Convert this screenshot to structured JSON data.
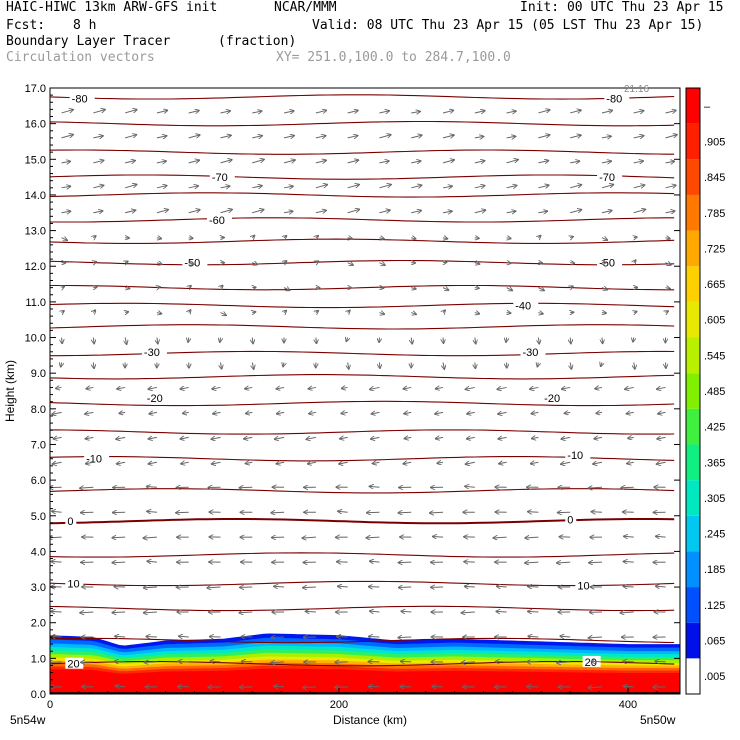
{
  "header": {
    "model": "HAIC-HIWC 13km ARW-GFS init",
    "org": "NCAR/MMM",
    "init": "Init: 00 UTC Thu 23 Apr 15",
    "fcst_label": "Fcst:",
    "fcst_value": "8 h",
    "valid": "Valid: 08 UTC Thu 23 Apr 15 (05 LST Thu 23 Apr 15)",
    "field_name": "Boundary Layer Tracer",
    "field_units": "(fraction)",
    "vector_label": "Circulation vectors",
    "xy_label": "XY= 251.0,100.0 to 284.7,100.0",
    "max_vector": "21.16"
  },
  "chart_data": {
    "type": "cross-section",
    "xlabel": "Distance (km)",
    "ylabel": "Height (km)",
    "xlim": [
      0,
      436
    ],
    "ylim": [
      0,
      17
    ],
    "x_ticks": [
      {
        "value": 0,
        "label": "0"
      },
      {
        "value": 200,
        "label": "200"
      },
      {
        "value": 400,
        "label": "400"
      }
    ],
    "x_end_labels": {
      "left": "5n54w",
      "right": "5n50w"
    },
    "y_ticks": [
      "0.0",
      "1.0",
      "2.0",
      "3.0",
      "4.0",
      "5.0",
      "6.0",
      "7.0",
      "8.0",
      "9.0",
      "10.0",
      "11.0",
      "12.0",
      "13.0",
      "14.0",
      "15.0",
      "16.0",
      "17.0"
    ],
    "colorbar": {
      "labels": [
        ".005",
        ".065",
        ".125",
        ".185",
        ".245",
        ".305",
        ".365",
        ".425",
        ".485",
        ".545",
        ".605",
        ".665",
        ".725",
        ".785",
        ".845",
        ".905",
        "–"
      ],
      "colors": [
        "#ffffff",
        "#0010e8",
        "#0050ff",
        "#0090ff",
        "#00c8f0",
        "#00e8c0",
        "#10f080",
        "#40f040",
        "#80f000",
        "#b8f000",
        "#e8e800",
        "#ffd000",
        "#ffa800",
        "#ff7800",
        "#ff4800",
        "#ff2000",
        "#ff0000"
      ]
    },
    "tracer_top_km": [
      {
        "x": 0,
        "top": 1.65
      },
      {
        "x": 30,
        "top": 1.6
      },
      {
        "x": 50,
        "top": 1.35
      },
      {
        "x": 80,
        "top": 1.5
      },
      {
        "x": 120,
        "top": 1.55
      },
      {
        "x": 150,
        "top": 1.7
      },
      {
        "x": 200,
        "top": 1.65
      },
      {
        "x": 240,
        "top": 1.5
      },
      {
        "x": 280,
        "top": 1.55
      },
      {
        "x": 320,
        "top": 1.5
      },
      {
        "x": 360,
        "top": 1.45
      },
      {
        "x": 400,
        "top": 1.4
      },
      {
        "x": 436,
        "top": 1.4
      }
    ],
    "temperature_contour_labels": [
      {
        "value": "-80",
        "x": 15,
        "y": 16.7
      },
      {
        "value": "-80",
        "x": 385,
        "y": 16.7
      },
      {
        "value": "-70",
        "x": 112,
        "y": 14.5
      },
      {
        "value": "-70",
        "x": 380,
        "y": 14.5
      },
      {
        "value": "-60",
        "x": 110,
        "y": 13.3
      },
      {
        "value": "-50",
        "x": 93,
        "y": 12.1
      },
      {
        "value": "-50",
        "x": 380,
        "y": 12.1
      },
      {
        "value": "-40",
        "x": 322,
        "y": 10.9
      },
      {
        "value": "-30",
        "x": 65,
        "y": 9.6
      },
      {
        "value": "-30",
        "x": 327,
        "y": 9.6
      },
      {
        "value": "-20",
        "x": 67,
        "y": 8.3
      },
      {
        "value": "-20",
        "x": 342,
        "y": 8.3
      },
      {
        "value": "-10",
        "x": 25,
        "y": 6.6
      },
      {
        "value": "-10",
        "x": 358,
        "y": 6.7
      },
      {
        "value": "0",
        "x": 12,
        "y": 4.85
      },
      {
        "value": "0",
        "x": 358,
        "y": 4.9
      },
      {
        "value": "10",
        "x": 12,
        "y": 3.1
      },
      {
        "value": "10",
        "x": 365,
        "y": 3.05
      },
      {
        "value": "20",
        "x": 12,
        "y": 0.85
      },
      {
        "value": "20",
        "x": 370,
        "y": 0.9
      }
    ]
  }
}
